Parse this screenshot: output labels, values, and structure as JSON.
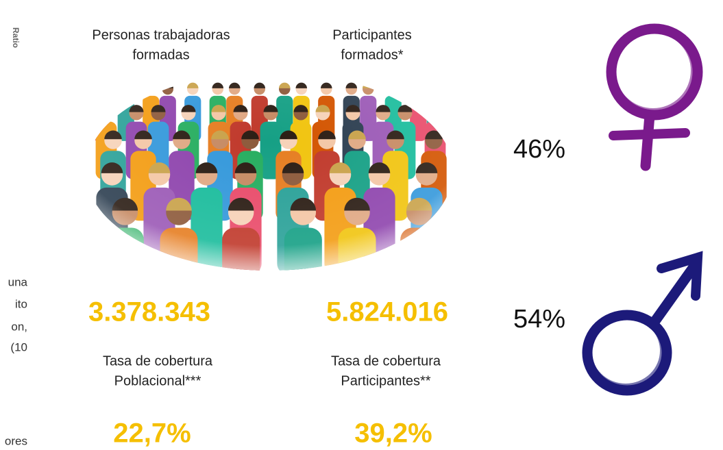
{
  "side_label": "Ratio",
  "left_fragments": [
    "una",
    "ito",
    "on,",
    "(10",
    "ores"
  ],
  "stats": [
    {
      "label_lines": [
        "Personas trabajadoras",
        "formadas"
      ],
      "value": "3.378.343",
      "rate_label_lines": [
        "Tasa de cobertura",
        "Poblacional***"
      ],
      "rate": "22,7%"
    },
    {
      "label_lines": [
        "Participantes",
        "formados*"
      ],
      "value": "5.824.016",
      "rate_label_lines": [
        "Tasa de cobertura",
        "Participantes**"
      ],
      "rate": "39,2%"
    }
  ],
  "gender": [
    {
      "share": "46%"
    },
    {
      "share": "54%"
    }
  ]
}
